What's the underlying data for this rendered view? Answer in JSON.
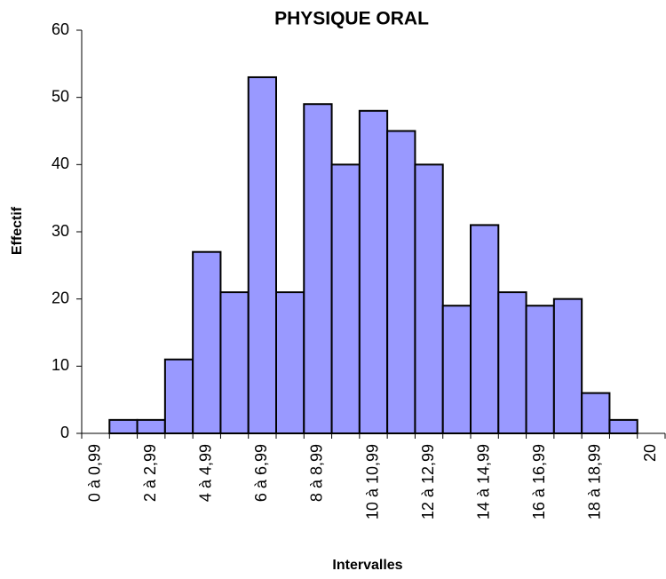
{
  "chart_data": {
    "type": "bar",
    "title": "PHYSIQUE ORAL",
    "x_label": "Intervalles",
    "y_label": "Effectif",
    "categories": [
      "0 à 0,99",
      null,
      "2 à 2,99",
      null,
      "4 à 4,99",
      null,
      "6 à 6,99",
      null,
      "8 à 8,99",
      null,
      "10 à 10,99",
      null,
      "12 à 12,99",
      null,
      "14 à 14,99",
      null,
      "16 à 16,99",
      null,
      "18 à 18,99",
      null,
      "20"
    ],
    "values": [
      0,
      2,
      2,
      11,
      27,
      21,
      53,
      21,
      49,
      40,
      48,
      45,
      40,
      19,
      31,
      21,
      19,
      20,
      6,
      2,
      0
    ],
    "color": "#9999ff",
    "ylim": [
      0,
      60
    ],
    "yticks": [
      0,
      10,
      20,
      30,
      40,
      50,
      60
    ],
    "grid": false
  }
}
